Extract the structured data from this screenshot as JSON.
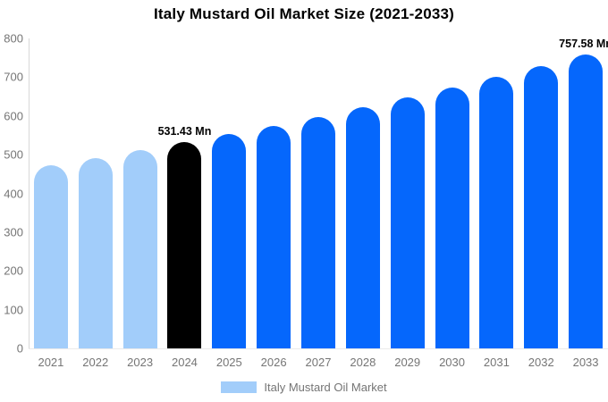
{
  "title": "Italy Mustard Oil Market Size (2021-2033)",
  "chart_data": {
    "type": "bar",
    "title": "Italy Mustard Oil Market Size (2021-2033)",
    "categories": [
      "2021",
      "2022",
      "2023",
      "2024",
      "2025",
      "2026",
      "2027",
      "2028",
      "2029",
      "2030",
      "2031",
      "2032",
      "2033"
    ],
    "values": [
      472.19,
      491.17,
      510.9,
      531.43,
      552.78,
      574.99,
      598.1,
      622.13,
      647.13,
      673.14,
      700.19,
      728.33,
      757.58
    ],
    "series_name": "Italy Mustard Oil Market",
    "unit": "Mn",
    "xlabel": "",
    "ylabel": "",
    "ylim": [
      0,
      800
    ],
    "yticks": [
      0,
      100,
      200,
      300,
      400,
      500,
      600,
      700,
      800
    ],
    "grid": false,
    "legend_position": "bottom",
    "data_labels": [
      {
        "category": "2024",
        "text": "531.43 Mn"
      },
      {
        "category": "2033",
        "text": "757.58 Mn"
      }
    ],
    "bar_colors": [
      "#A2CDFA",
      "#A2CDFA",
      "#A2CDFA",
      "#000000",
      "#0567FC",
      "#0567FC",
      "#0567FC",
      "#0567FC",
      "#0567FC",
      "#0567FC",
      "#0567FC",
      "#0567FC",
      "#0567FC"
    ]
  },
  "colors": {
    "historical_bar": "#A2CDFA",
    "base_year_bar": "#000000",
    "forecast_bar": "#0567FC",
    "axis_text": "#757575",
    "axis_line": "#d8d8d8",
    "title_text": "#000000",
    "background": "#ffffff"
  },
  "legend": {
    "label": "Italy Mustard Oil Market",
    "swatch_color": "#A2CDFA"
  }
}
